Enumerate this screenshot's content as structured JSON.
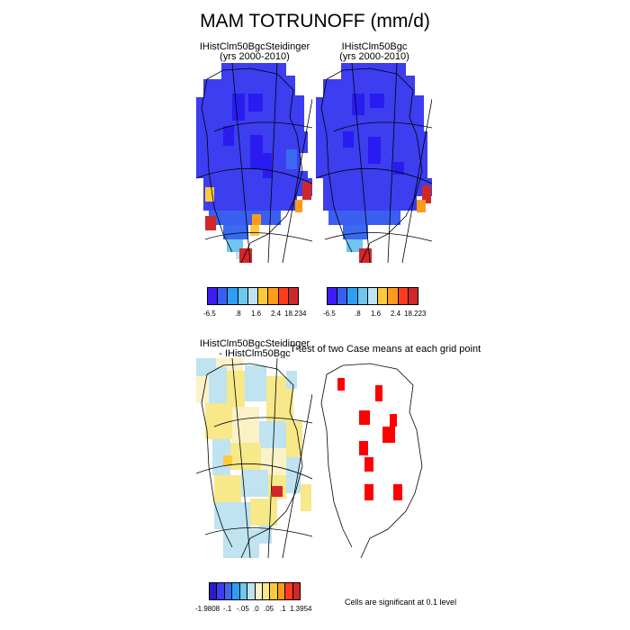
{
  "title": "MAM TOTRUNOFF (mm/d)",
  "panels": [
    {
      "title_line1": "IHistClm50BgcSteidinger",
      "title_line2": "(yrs 2000-2010)"
    },
    {
      "title_line1": "IHistClm50Bgc",
      "title_line2": "(yrs 2000-2010)"
    }
  ],
  "diff": {
    "title_line1": "IHistClm50BgcSteidinger",
    "title_line2": "- IHistClm50Bgc",
    "ttest_title": "T-test of two Case means at each grid point",
    "note": "Cells are significant at 0.1 level"
  },
  "colorbars": {
    "abs1": {
      "colors": [
        "#3c1cf2",
        "#3a5ff0",
        "#2f9ef0",
        "#6fc6ee",
        "#bfe3f0",
        "#ffc93a",
        "#ff9a1c",
        "#ff3c1c",
        "#d02828"
      ],
      "labels": [
        "-6.5",
        ".8",
        "1.6",
        "2.4",
        "18.234"
      ]
    },
    "abs2": {
      "colors": [
        "#3c1cf2",
        "#3a5ff0",
        "#2f9ef0",
        "#6fc6ee",
        "#bfe3f0",
        "#ffc93a",
        "#ff9a1c",
        "#ff3c1c",
        "#d02828"
      ],
      "labels": [
        "-6.5",
        ".8",
        "1.6",
        "2.4",
        "18.223"
      ]
    },
    "diff": {
      "colors": [
        "#2a1cc8",
        "#3c3cf0",
        "#3a6af0",
        "#2f9ef0",
        "#6fc6ee",
        "#bfe3f0",
        "#fbf2c8",
        "#f7e88a",
        "#ffc93a",
        "#ff9a1c",
        "#ff3c1c",
        "#d02828"
      ],
      "labels": [
        "-1.9808",
        "-.1",
        "-.05",
        ".0",
        ".05",
        ".1",
        "1.3954"
      ]
    }
  }
}
